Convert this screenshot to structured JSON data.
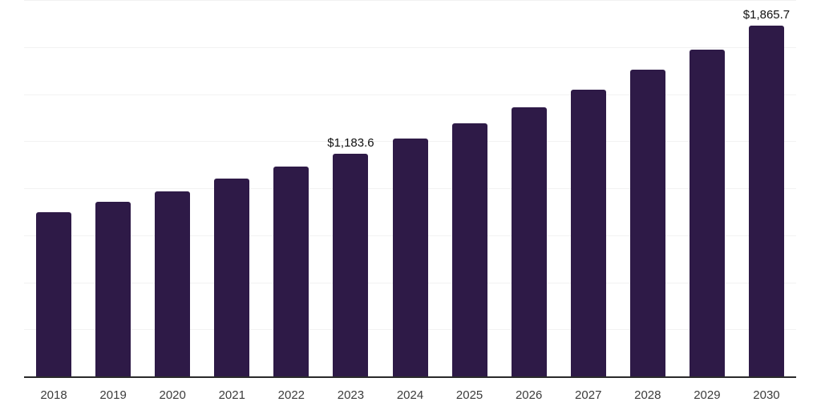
{
  "chart_data": {
    "type": "bar",
    "categories": [
      "2018",
      "2019",
      "2020",
      "2021",
      "2022",
      "2023",
      "2024",
      "2025",
      "2026",
      "2027",
      "2028",
      "2029",
      "2030"
    ],
    "values": [
      873.0,
      928.0,
      983.1,
      1052.2,
      1114.5,
      1183.6,
      1262.8,
      1343.3,
      1429.3,
      1525.5,
      1630.2,
      1737.4,
      1865.7
    ],
    "bar_labels": [
      "",
      "",
      "",
      "",
      "",
      "$1,183.6",
      "",
      "",
      "",
      "",
      "",
      "",
      "$1,865.7"
    ],
    "title": "",
    "xlabel": "",
    "ylabel": "",
    "ylim": [
      0,
      2000
    ],
    "grid_interval": 250,
    "grid": true,
    "legend": false,
    "y_axis_labels_visible": false,
    "colors": {
      "bar": "#2E1A47",
      "gridline": "#F2F2F2",
      "axis_line": "#2B2B2B",
      "tick_text": "#3C3C3C",
      "value_label_text": "#111111",
      "background": "#FFFFFF"
    }
  }
}
